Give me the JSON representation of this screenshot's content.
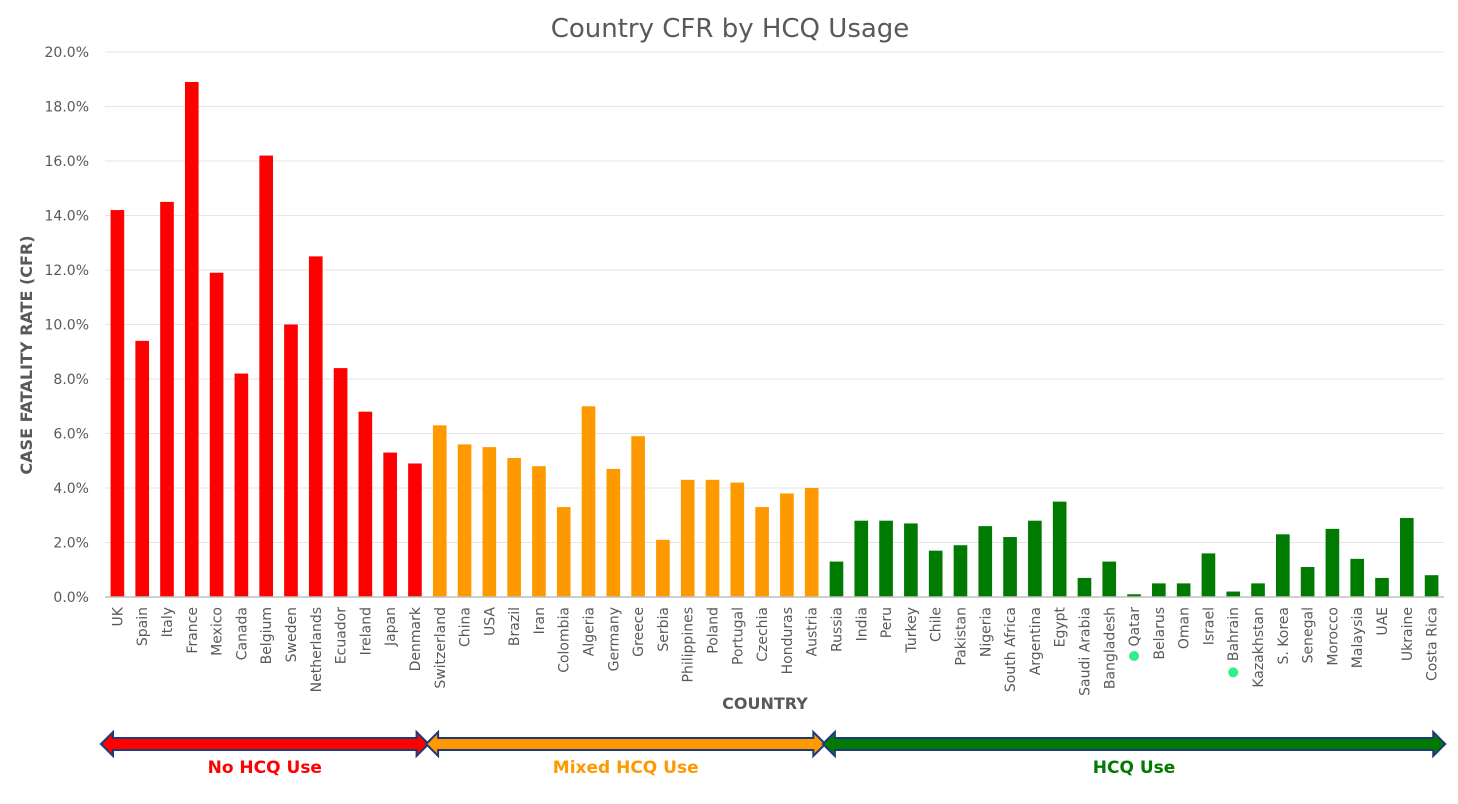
{
  "chart_data": {
    "type": "bar",
    "title": "Country CFR by HCQ Usage",
    "xlabel": "COUNTRY",
    "ylabel": "CASE FATALITY RATE (CFR)",
    "ylim": [
      0,
      20
    ],
    "y_ticks": [
      "0.0%",
      "2.0%",
      "4.0%",
      "6.0%",
      "8.0%",
      "10.0%",
      "12.0%",
      "14.0%",
      "16.0%",
      "18.0%",
      "20.0%"
    ],
    "grid": true,
    "legend": "none",
    "categories": [
      "UK",
      "Spain",
      "Italy",
      "France",
      "Mexico",
      "Canada",
      "Belgium",
      "Sweden",
      "Netherlands",
      "Ecuador",
      "Ireland",
      "Japan",
      "Denmark",
      "Switzerland",
      "China",
      "USA",
      "Brazil",
      "Iran",
      "Colombia",
      "Algeria",
      "Germany",
      "Greece",
      "Serbia",
      "Philippines",
      "Poland",
      "Portugal",
      "Czechia",
      "Honduras",
      "Austria",
      "Russia",
      "India",
      "Peru",
      "Turkey",
      "Chile",
      "Pakistan",
      "Nigeria",
      "South Africa",
      "Argentina",
      "Egypt",
      "Saudi Arabia",
      "Bangladesh",
      "Qatar",
      "Belarus",
      "Oman",
      "Israel",
      "Bahrain",
      "Kazakhstan",
      "S. Korea",
      "Senegal",
      "Morocco",
      "Malaysia",
      "UAE",
      "Ukraine",
      "Costa Rica"
    ],
    "values": [
      14.2,
      9.4,
      14.5,
      18.9,
      11.9,
      8.2,
      16.2,
      10.0,
      12.5,
      8.4,
      6.8,
      5.3,
      4.9,
      6.3,
      5.6,
      5.5,
      5.1,
      4.8,
      3.3,
      7.0,
      4.7,
      5.9,
      2.1,
      4.3,
      4.3,
      4.2,
      3.3,
      3.8,
      4.0,
      1.3,
      2.8,
      2.8,
      2.7,
      1.7,
      1.9,
      2.6,
      2.2,
      2.8,
      3.5,
      0.7,
      1.3,
      0.1,
      0.5,
      0.5,
      1.6,
      0.2,
      0.5,
      2.3,
      1.1,
      2.5,
      1.4,
      0.7,
      2.9,
      0.8
    ],
    "groups": [
      {
        "label": "No HCQ Use",
        "start": 0,
        "end": 12,
        "color": "#ff0000",
        "text_color": "#ff0000"
      },
      {
        "label": "Mixed HCQ Use",
        "start": 13,
        "end": 28,
        "color": "#ff9900",
        "text_color": "#ff9900"
      },
      {
        "label": "HCQ Use",
        "start": 29,
        "end": 53,
        "color": "#007a00",
        "text_color": "#007a00"
      }
    ],
    "marked_categories": [
      "Qatar",
      "Bahrain"
    ],
    "marker_color": "#33ee88",
    "colors": {
      "title": "#595959",
      "axis_label": "#595959",
      "tick_label": "#595959",
      "grid": "#e6e6e6",
      "axis": "#bfbfbf",
      "arrow_outline": "#1f3a7a"
    }
  }
}
